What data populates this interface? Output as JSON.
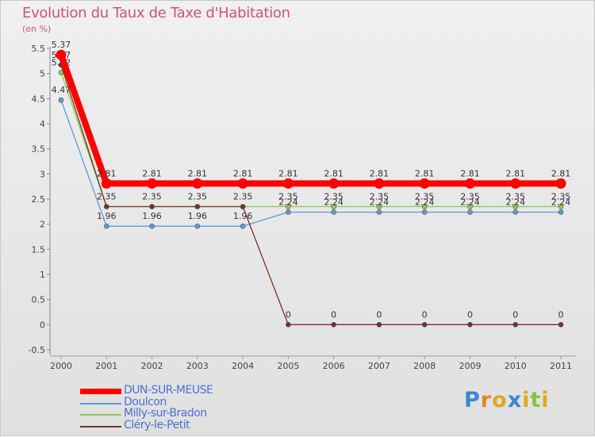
{
  "title": "Evolution du Taux de Taxe d'Habitation",
  "unit_label": "(en %)",
  "logo": "Proxiti",
  "chart_data": {
    "type": "line",
    "title": "Evolution du Taux de Taxe d'Habitation",
    "ylabel": "(en %)",
    "xlabel": "",
    "ylim": [
      -0.5,
      5.5
    ],
    "yticks": [
      {
        "label": "-0.5",
        "value": -0.5
      },
      {
        "label": "0",
        "value": 0
      },
      {
        "label": "0.5",
        "value": 0.5
      },
      {
        "label": "1",
        "value": 1
      },
      {
        "label": "1.5",
        "value": 1.5
      },
      {
        "label": "2",
        "value": 2
      },
      {
        "label": "2.5",
        "value": 2.5
      },
      {
        "label": "3",
        "value": 3
      },
      {
        "label": "3.5",
        "value": 3.5
      },
      {
        "label": "4",
        "value": 4
      },
      {
        "label": "4.5",
        "value": 4.5
      },
      {
        "label": "5",
        "value": 5
      },
      {
        "label": "5.5",
        "value": 5.5
      }
    ],
    "categories": [
      "2000",
      "2001",
      "2002",
      "2003",
      "2004",
      "2005",
      "2006",
      "2007",
      "2008",
      "2009",
      "2010",
      "2011"
    ],
    "series": [
      {
        "name": "Milly-sur-Bradon",
        "color": "#88cc44",
        "values": [
          5.02,
          2.35,
          2.35,
          2.35,
          2.35,
          2.35,
          2.35,
          2.35,
          2.35,
          2.35,
          2.35,
          2.35
        ],
        "labels": [
          "5.02",
          "",
          "",
          "",
          "",
          "2.35",
          "2.35",
          "2.35",
          "2.35",
          "2.35",
          "2.35",
          "2.35"
        ]
      },
      {
        "name": "Doulcon",
        "color": "#5b9bd5",
        "values": [
          4.47,
          1.96,
          1.96,
          1.96,
          1.96,
          2.24,
          2.24,
          2.24,
          2.24,
          2.24,
          2.24,
          2.24
        ],
        "labels": [
          "4.47",
          "1.96",
          "1.96",
          "1.96",
          "1.96",
          "2.24",
          "2.24",
          "2.24",
          "2.24",
          "2.24",
          "2.24",
          "2.24"
        ]
      },
      {
        "name": "Cléry-le-Petit",
        "color": "#7a2e2e",
        "values": [
          5.17,
          2.35,
          2.35,
          2.35,
          2.35,
          0,
          0,
          0,
          0,
          0,
          0,
          0
        ],
        "labels": [
          "5.17",
          "2.35",
          "2.35",
          "2.35",
          "2.35",
          "0",
          "0",
          "0",
          "0",
          "0",
          "0",
          "0"
        ]
      },
      {
        "name": "DUN-SUR-MEUSE",
        "color": "#ff0000",
        "values": [
          5.37,
          2.81,
          2.81,
          2.81,
          2.81,
          2.81,
          2.81,
          2.81,
          2.81,
          2.81,
          2.81,
          2.81
        ],
        "labels": [
          "5.37",
          "2.81",
          "2.81",
          "2.81",
          "2.81",
          "2.81",
          "2.81",
          "2.81",
          "2.81",
          "2.81",
          "2.81",
          "2.81"
        ]
      }
    ],
    "legend": [
      "DUN-SUR-MEUSE",
      "Doulcon",
      "Milly-sur-Bradon",
      "Cléry-le-Petit"
    ],
    "legend_position": "bottom-left"
  }
}
